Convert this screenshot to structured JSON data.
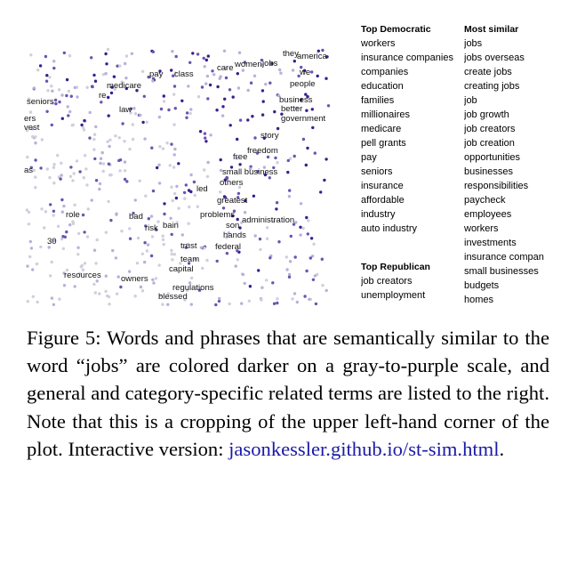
{
  "scatter": {
    "labels": [
      "they",
      "america",
      "care",
      "women",
      "jobs",
      "pay",
      "class",
      "we",
      "people",
      "medicare",
      "re",
      "business",
      "seniors",
      "law",
      "better",
      "government",
      "story",
      "freedom",
      "free",
      "small business",
      "others",
      "led",
      "greatest",
      "role",
      "bad",
      "problems",
      "administration",
      "son",
      "risk",
      "bain",
      "hands",
      "federal",
      "trust",
      "team",
      "30",
      "capital",
      "resources",
      "owners",
      "regulations",
      "blessed",
      "ers",
      "vest",
      "as"
    ],
    "colors": {
      "dark": "#3b1e8c",
      "mid": "#6a54b0",
      "light": "#b9b0d8",
      "gray": "#cfcfdc"
    }
  },
  "dem_list": {
    "header": "Top Democratic",
    "items": [
      "workers",
      "insurance companies",
      "companies",
      "education",
      "families",
      "millionaires",
      "medicare",
      "pell grants",
      "pay",
      "seniors",
      "insurance",
      "affordable",
      "industry",
      "auto industry"
    ]
  },
  "rep_list": {
    "header": "Top Republican",
    "items": [
      "job creators",
      "unemployment"
    ]
  },
  "sim_list": {
    "header": "Most similar",
    "items": [
      "jobs",
      "jobs overseas",
      "create jobs",
      "creating jobs",
      "job",
      "job growth",
      "job creators",
      "job creation",
      "opportunities",
      "businesses",
      "responsibilities",
      "paycheck",
      "employees",
      "workers",
      "investments",
      "insurance compan",
      "small businesses",
      "budgets",
      "homes"
    ]
  },
  "caption": {
    "text": "Figure 5:  Words and phrases that are semantically similar to the word “jobs” are colored darker on a gray-to-purple scale, and general and category-specific related terms are listed to the right.  Note that this is a cropping of the upper left-hand corner of the plot.  Interactive version: ",
    "link": "jasonkessler.github.io/st-sim.html",
    "end": "."
  }
}
